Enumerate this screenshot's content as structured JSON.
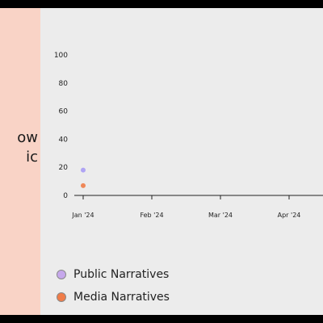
{
  "panel": {
    "background": "#f9d3c6",
    "text_fragments": [
      "ow",
      "ic"
    ]
  },
  "chart_data": {
    "type": "scatter",
    "x_ticks": [
      "Jan '24",
      "Feb '24",
      "Mar '24",
      "Apr '24"
    ],
    "y_ticks": [
      0,
      20,
      40,
      60,
      80,
      100
    ],
    "ylim": [
      0,
      100
    ],
    "grid": false,
    "legend_position": "bottom-left",
    "series": [
      {
        "name": "Public Narratives",
        "color": "#a99cf5",
        "legend_color": "#c6a8ec",
        "points": [
          {
            "x": "Jan '24",
            "y": 18
          }
        ]
      },
      {
        "name": "Media Narratives",
        "color": "#f07c48",
        "legend_color": "#f07c48",
        "points": [
          {
            "x": "Jan '24",
            "y": 7
          }
        ]
      }
    ]
  }
}
